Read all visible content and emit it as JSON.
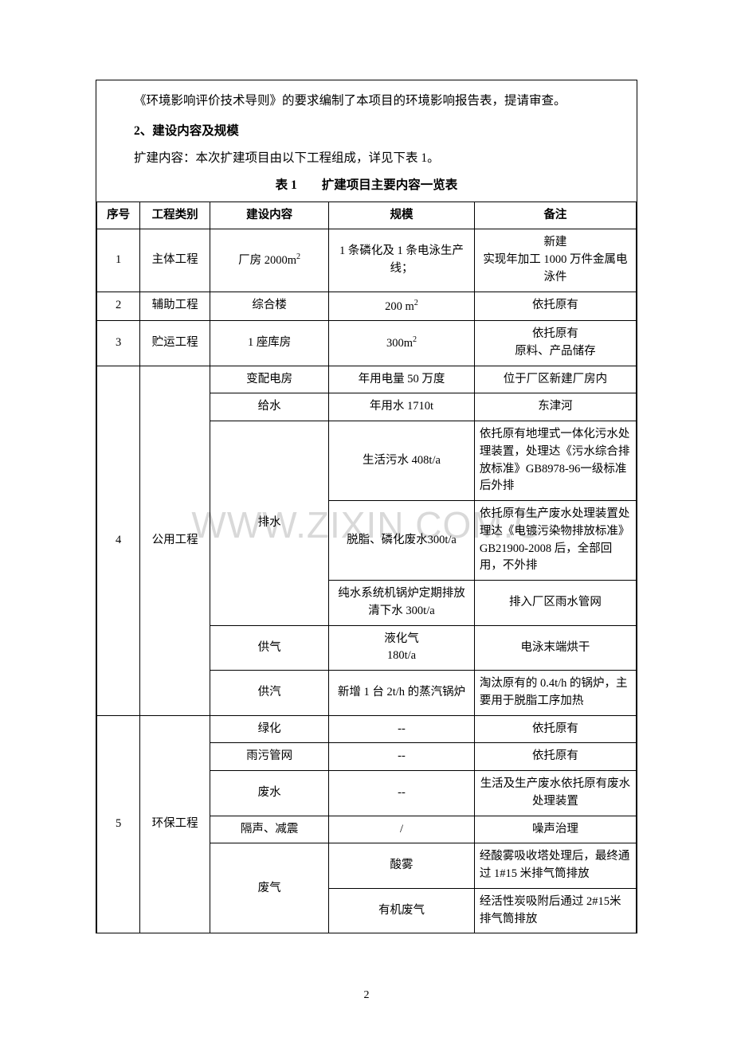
{
  "intro_para": "《环境影响评价技术导则》的要求编制了本项目的环境影响报告表，提请审查。",
  "section_heading": "2、建设内容及规模",
  "expansion_para": "扩建内容：本次扩建项目由以下工程组成，详见下表 1。",
  "table_caption": "表 1  扩建项目主要内容一览表",
  "headers": {
    "seq": "序号",
    "cat": "工程类别",
    "content": "建设内容",
    "scale": "规模",
    "note": "备注"
  },
  "rows": {
    "r1": {
      "seq": "1",
      "cat": "主体工程",
      "content_prefix": "厂房 2000m",
      "content_sup": "2",
      "scale": "1 条磷化及 1 条电泳生产线；",
      "note": "新建\n实现年加工 1000 万件金属电泳件"
    },
    "r2": {
      "seq": "2",
      "cat": "辅助工程",
      "content": "综合楼",
      "scale_prefix": "200 m",
      "scale_sup": "2",
      "note": "依托原有"
    },
    "r3": {
      "seq": "3",
      "cat": "贮运工程",
      "content": "1 座库房",
      "scale_prefix": "300m",
      "scale_sup": "2",
      "note": "依托原有\n原料、产品储存"
    },
    "r4": {
      "seq": "4",
      "cat": "公用工程",
      "a": {
        "content": "变配电房",
        "scale": "年用电量 50 万度",
        "note": "位于厂区新建厂房内"
      },
      "b": {
        "content": "给水",
        "scale": "年用水 1710t",
        "note": "东津河"
      },
      "c": {
        "content": "排水",
        "c1": {
          "scale": "生活污水 408t/a",
          "note": "依托原有地埋式一体化污水处理装置，处理达《污水综合排放标准》GB8978-96一级标准后外排"
        },
        "c2": {
          "scale": "脱脂、磷化废水300t/a",
          "note": "依托原有生产废水处理装置处理达《电镀污染物排放标准》GB21900-2008 后，全部回用，不外排"
        },
        "c3": {
          "scale": "纯水系统机锅炉定期排放清下水 300t/a",
          "note": "排入厂区雨水管网"
        }
      },
      "d": {
        "content": "供气",
        "scale": "液化气\n180t/a",
        "note": "电泳末端烘干"
      },
      "e": {
        "content": "供汽",
        "scale": "新增 1 台 2t/h 的蒸汽锅炉",
        "note": "淘汰原有的 0.4t/h 的锅炉，主要用于脱脂工序加热"
      }
    },
    "r5": {
      "seq": "5",
      "cat": "环保工程",
      "a": {
        "content": "绿化",
        "scale": "--",
        "note": "依托原有"
      },
      "b": {
        "content": "雨污管网",
        "scale": "--",
        "note": "依托原有"
      },
      "c": {
        "content": "废水",
        "scale": "--",
        "note": "生活及生产废水依托原有废水处理装置"
      },
      "d": {
        "content": "隔声、减震",
        "scale": "/",
        "note": "噪声治理"
      },
      "e": {
        "content": "废气",
        "e1": {
          "scale": "酸雾",
          "note": "经酸雾吸收塔处理后，最终通过 1#15 米排气筒排放"
        },
        "e2": {
          "scale": "有机废气",
          "note": "经活性炭吸附后通过 2#15米排气筒排放"
        }
      }
    }
  },
  "watermark": "WWW.ZIXIN.COM.C",
  "page_number": "2"
}
